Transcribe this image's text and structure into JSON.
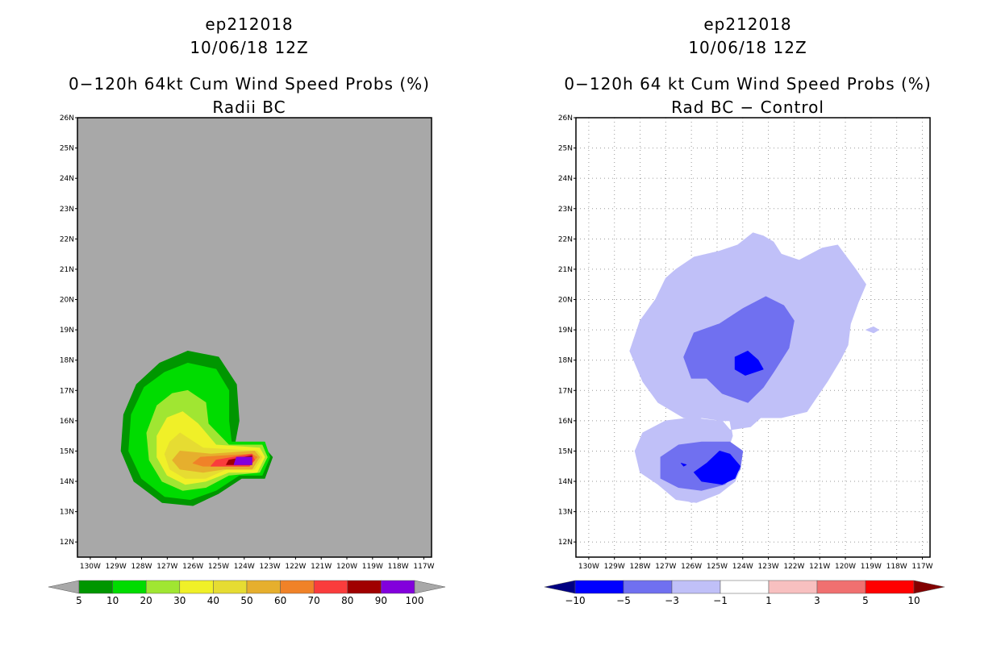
{
  "panels": [
    {
      "storm_id": "ep212018",
      "datetime": "10/06/18 12Z",
      "title": "0−120h 64kt Cum Wind Speed Probs (%)",
      "subtitle": "Radii BC"
    },
    {
      "storm_id": "ep212018",
      "datetime": "10/06/18 12Z",
      "title": "0−120h 64 kt Cum Wind Speed Probs (%)",
      "subtitle": "Rad BC − Control"
    }
  ],
  "chart_data": [
    {
      "type": "heatmap",
      "title": "0-120h 64kt Cum Wind Speed Probs (%) Radii BC",
      "background_color": "#a8a8a8",
      "grid": false,
      "xlim": [
        -130.5,
        -116.7
      ],
      "ylim": [
        11.5,
        26
      ],
      "x_ticks": [
        "130W",
        "129W",
        "128W",
        "127W",
        "126W",
        "125W",
        "124W",
        "123W",
        "122W",
        "121W",
        "120W",
        "119W",
        "118W",
        "117W"
      ],
      "y_ticks": [
        "12N",
        "13N",
        "14N",
        "15N",
        "16N",
        "17N",
        "18N",
        "19N",
        "20N",
        "21N",
        "22N",
        "23N",
        "24N",
        "25N",
        "26N"
      ],
      "colorbar": {
        "labels": [
          "5",
          "10",
          "20",
          "30",
          "40",
          "50",
          "60",
          "70",
          "80",
          "90",
          "100"
        ],
        "colors": [
          "#009600",
          "#00dc00",
          "#a0e632",
          "#f0f028",
          "#e6dc32",
          "#e6af2d",
          "#f08228",
          "#fa3c3c",
          "#a00000",
          "#8200dc"
        ],
        "end_colors": [
          "#a8a8a8",
          "#a8a8a8"
        ]
      },
      "contour_levels": [
        {
          "min": 5,
          "color": "#009600",
          "polygon": [
            [
              -126.2,
              18.3
            ],
            [
              -125.0,
              18.1
            ],
            [
              -124.3,
              17.2
            ],
            [
              -124.2,
              16.0
            ],
            [
              -124.4,
              15.1
            ],
            [
              -123.2,
              15.1
            ],
            [
              -122.9,
              14.8
            ],
            [
              -123.2,
              14.1
            ],
            [
              -124.1,
              14.1
            ],
            [
              -125.0,
              13.6
            ],
            [
              -126.0,
              13.2
            ],
            [
              -127.2,
              13.3
            ],
            [
              -128.3,
              14.0
            ],
            [
              -128.8,
              15.0
            ],
            [
              -128.7,
              16.2
            ],
            [
              -128.2,
              17.2
            ],
            [
              -127.3,
              17.9
            ]
          ]
        },
        {
          "min": 10,
          "color": "#00dc00",
          "polygon": [
            [
              -126.2,
              17.9
            ],
            [
              -125.1,
              17.7
            ],
            [
              -124.6,
              17.0
            ],
            [
              -124.6,
              16.0
            ],
            [
              -124.5,
              15.3
            ],
            [
              -123.2,
              15.3
            ],
            [
              -123.0,
              14.8
            ],
            [
              -123.3,
              14.2
            ],
            [
              -124.2,
              14.2
            ],
            [
              -125.1,
              13.7
            ],
            [
              -126.1,
              13.4
            ],
            [
              -127.1,
              13.5
            ],
            [
              -128.0,
              14.1
            ],
            [
              -128.5,
              15.0
            ],
            [
              -128.4,
              16.2
            ],
            [
              -127.9,
              17.1
            ],
            [
              -127.1,
              17.6
            ]
          ]
        },
        {
          "min": 20,
          "color": "#a0e632",
          "polygon": [
            [
              -126.2,
              17.0
            ],
            [
              -125.5,
              16.6
            ],
            [
              -125.4,
              15.9
            ],
            [
              -124.6,
              15.2
            ],
            [
              -123.3,
              15.2
            ],
            [
              -123.1,
              14.8
            ],
            [
              -123.4,
              14.3
            ],
            [
              -124.6,
              14.2
            ],
            [
              -125.5,
              13.8
            ],
            [
              -126.4,
              13.7
            ],
            [
              -127.2,
              14.0
            ],
            [
              -127.7,
              14.7
            ],
            [
              -127.8,
              15.6
            ],
            [
              -127.4,
              16.5
            ],
            [
              -126.8,
              16.9
            ]
          ]
        },
        {
          "min": 30,
          "color": "#f0f028",
          "polygon": [
            [
              -126.4,
              16.3
            ],
            [
              -125.8,
              15.9
            ],
            [
              -125.1,
              15.2
            ],
            [
              -123.4,
              15.1
            ],
            [
              -123.2,
              14.8
            ],
            [
              -123.5,
              14.3
            ],
            [
              -124.6,
              14.3
            ],
            [
              -125.5,
              14.0
            ],
            [
              -126.3,
              13.9
            ],
            [
              -127.0,
              14.2
            ],
            [
              -127.4,
              14.8
            ],
            [
              -127.4,
              15.5
            ],
            [
              -127.0,
              16.1
            ]
          ]
        },
        {
          "min": 40,
          "color": "#e6dc32",
          "polygon": [
            [
              -126.5,
              15.6
            ],
            [
              -125.6,
              15.1
            ],
            [
              -123.5,
              15.0
            ],
            [
              -123.3,
              14.8
            ],
            [
              -123.6,
              14.4
            ],
            [
              -124.7,
              14.4
            ],
            [
              -125.5,
              14.1
            ],
            [
              -126.3,
              14.1
            ],
            [
              -126.9,
              14.4
            ],
            [
              -127.1,
              14.9
            ],
            [
              -126.9,
              15.3
            ]
          ]
        },
        {
          "min": 50,
          "color": "#e6af2d",
          "polygon": [
            [
              -126.5,
              15.0
            ],
            [
              -125.3,
              14.9
            ],
            [
              -123.6,
              15.0
            ],
            [
              -123.4,
              14.8
            ],
            [
              -123.7,
              14.4
            ],
            [
              -124.8,
              14.4
            ],
            [
              -125.6,
              14.3
            ],
            [
              -126.5,
              14.4
            ],
            [
              -126.8,
              14.7
            ]
          ]
        },
        {
          "min": 60,
          "color": "#f08228",
          "polygon": [
            [
              -125.7,
              14.8
            ],
            [
              -123.7,
              14.9
            ],
            [
              -123.5,
              14.8
            ],
            [
              -123.8,
              14.5
            ],
            [
              -124.9,
              14.5
            ],
            [
              -125.6,
              14.5
            ],
            [
              -126.0,
              14.6
            ]
          ]
        },
        {
          "min": 70,
          "color": "#fa3c3c",
          "polygon": [
            [
              -125.1,
              14.7
            ],
            [
              -123.7,
              14.9
            ],
            [
              -123.6,
              14.7
            ],
            [
              -123.8,
              14.5
            ],
            [
              -125.0,
              14.5
            ],
            [
              -125.3,
              14.5
            ]
          ]
        },
        {
          "min": 80,
          "color": "#a00000",
          "polygon": [
            [
              -124.6,
              14.7
            ],
            [
              -123.7,
              14.85
            ],
            [
              -123.7,
              14.55
            ],
            [
              -124.7,
              14.55
            ]
          ]
        },
        {
          "min": 90,
          "color": "#8200dc",
          "polygon": [
            [
              -124.3,
              14.8
            ],
            [
              -123.7,
              14.8
            ],
            [
              -123.7,
              14.55
            ],
            [
              -124.4,
              14.55
            ]
          ]
        }
      ]
    },
    {
      "type": "heatmap",
      "title": "0-120h 64 kt Cum Wind Speed Probs (%) Rad BC - Control",
      "background_color": "#ffffff",
      "grid": true,
      "xlim": [
        -130.5,
        -116.7
      ],
      "ylim": [
        11.5,
        26
      ],
      "x_ticks": [
        "130W",
        "129W",
        "128W",
        "127W",
        "126W",
        "125W",
        "124W",
        "123W",
        "122W",
        "121W",
        "120W",
        "119W",
        "118W",
        "117W"
      ],
      "y_ticks": [
        "12N",
        "13N",
        "14N",
        "15N",
        "16N",
        "17N",
        "18N",
        "19N",
        "20N",
        "21N",
        "22N",
        "23N",
        "24N",
        "25N",
        "26N"
      ],
      "colorbar": {
        "labels": [
          "−10",
          "−5",
          "−3",
          "−1",
          "1",
          "3",
          "5",
          "10"
        ],
        "colors": [
          "#0000ff",
          "#7070f0",
          "#c0c0f8",
          "#ffffff",
          "#f8c0c0",
          "#f07070",
          "#ff0000"
        ],
        "end_colors": [
          "#000082",
          "#820000"
        ]
      },
      "contour_levels": [
        {
          "max": -1,
          "color": "#c0c0f8",
          "polygon": [
            [
              -123.2,
              22.1
            ],
            [
              -122.8,
              21.9
            ],
            [
              -122.5,
              21.5
            ],
            [
              -121.8,
              21.3
            ],
            [
              -120.9,
              21.7
            ],
            [
              -120.3,
              21.8
            ],
            [
              -119.6,
              21.0
            ],
            [
              -119.2,
              20.5
            ],
            [
              -119.5,
              19.9
            ],
            [
              -119.8,
              19.2
            ],
            [
              -119.9,
              18.5
            ],
            [
              -120.2,
              18.0
            ],
            [
              -120.7,
              17.3
            ],
            [
              -121.1,
              16.8
            ],
            [
              -121.5,
              16.3
            ],
            [
              -122.5,
              16.1
            ],
            [
              -123.3,
              16.1
            ],
            [
              -123.7,
              15.8
            ],
            [
              -124.5,
              15.7
            ],
            [
              -124.8,
              16.0
            ],
            [
              -125.6,
              16.1
            ],
            [
              -126.3,
              15.9
            ],
            [
              -127.1,
              15.3
            ],
            [
              -127.5,
              14.8
            ],
            [
              -127.3,
              14.0
            ],
            [
              -126.8,
              13.6
            ],
            [
              -126.0,
              13.3
            ],
            [
              -125.5,
              13.4
            ],
            [
              -124.8,
              13.7
            ],
            [
              -124.3,
              14.0
            ],
            [
              -124.7,
              14.5
            ],
            [
              -124.6,
              15.0
            ],
            [
              -124.4,
              15.5
            ],
            [
              -124.5,
              16.0
            ],
            [
              -125.2,
              16.0
            ],
            [
              -126.3,
              16.1
            ],
            [
              -127.3,
              16.6
            ],
            [
              -127.9,
              17.3
            ],
            [
              -128.4,
              18.3
            ],
            [
              -128.0,
              19.3
            ],
            [
              -127.4,
              20.0
            ],
            [
              -127.0,
              20.7
            ],
            [
              -126.6,
              21.0
            ],
            [
              -125.9,
              21.4
            ],
            [
              -124.9,
              21.6
            ],
            [
              -124.2,
              21.8
            ],
            [
              -123.6,
              22.2
            ]
          ]
        },
        {
          "max": -1,
          "color": "#c0c0f8",
          "polygon": [
            [
              -126.0,
              16.1
            ],
            [
              -125.0,
              16.0
            ],
            [
              -124.6,
              15.6
            ],
            [
              -124.4,
              14.8
            ],
            [
              -124.1,
              14.4
            ],
            [
              -124.3,
              14.0
            ],
            [
              -124.9,
              13.6
            ],
            [
              -125.8,
              13.3
            ],
            [
              -126.6,
              13.4
            ],
            [
              -127.3,
              13.9
            ],
            [
              -128.0,
              14.3
            ],
            [
              -128.2,
              15.0
            ],
            [
              -127.9,
              15.6
            ],
            [
              -127.0,
              16.0
            ]
          ]
        },
        {
          "max": -3,
          "color": "#7070f0",
          "polygon": [
            [
              -123.1,
              20.1
            ],
            [
              -122.4,
              19.8
            ],
            [
              -122.0,
              19.3
            ],
            [
              -122.2,
              18.4
            ],
            [
              -122.8,
              17.6
            ],
            [
              -123.2,
              17.1
            ],
            [
              -123.8,
              16.6
            ],
            [
              -124.8,
              16.9
            ],
            [
              -125.4,
              17.4
            ],
            [
              -126.0,
              17.4
            ],
            [
              -126.3,
              18.1
            ],
            [
              -125.9,
              18.9
            ],
            [
              -124.9,
              19.2
            ],
            [
              -124.0,
              19.7
            ]
          ]
        },
        {
          "max": -3,
          "color": "#7070f0",
          "polygon": [
            [
              -125.6,
              15.3
            ],
            [
              -124.5,
              15.3
            ],
            [
              -124.0,
              15.0
            ],
            [
              -124.1,
              14.4
            ],
            [
              -124.7,
              13.9
            ],
            [
              -125.6,
              13.7
            ],
            [
              -126.5,
              13.8
            ],
            [
              -127.2,
              14.1
            ],
            [
              -127.2,
              14.8
            ],
            [
              -126.5,
              15.2
            ]
          ]
        },
        {
          "max": -5,
          "color": "#0000ff",
          "polygon": [
            [
              -123.8,
              18.3
            ],
            [
              -123.4,
              18.0
            ],
            [
              -123.2,
              17.7
            ],
            [
              -123.9,
              17.5
            ],
            [
              -124.3,
              17.7
            ],
            [
              -124.3,
              18.1
            ]
          ]
        },
        {
          "max": -5,
          "color": "#0000ff",
          "polygon": [
            [
              -124.9,
              15.0
            ],
            [
              -124.5,
              14.9
            ],
            [
              -124.1,
              14.5
            ],
            [
              -124.3,
              14.1
            ],
            [
              -124.8,
              13.9
            ],
            [
              -125.6,
              14.0
            ],
            [
              -125.9,
              14.3
            ],
            [
              -125.4,
              14.6
            ]
          ]
        },
        {
          "max": -5,
          "color": "#0000ff",
          "polygon": [
            [
              -126.3,
              14.5
            ],
            [
              -126.4,
              14.6
            ],
            [
              -126.2,
              14.55
            ]
          ]
        },
        {
          "max": -1,
          "color": "#c0c0f8",
          "polygon": [
            [
              -118.9,
              19.1
            ],
            [
              -118.7,
              19.0
            ],
            [
              -118.9,
              18.9
            ],
            [
              -119.2,
              19.0
            ]
          ]
        }
      ]
    }
  ]
}
